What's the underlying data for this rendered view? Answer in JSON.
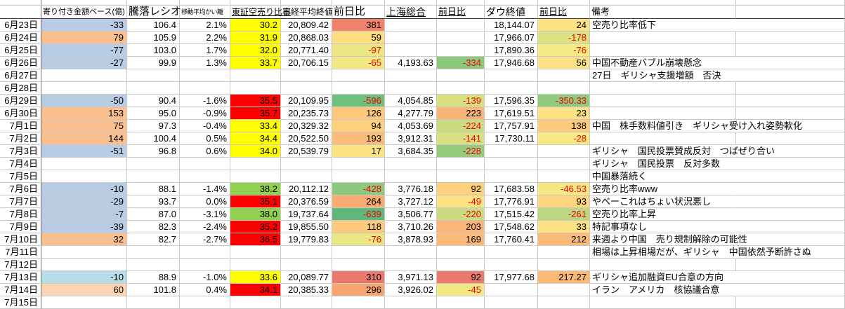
{
  "sheet": {
    "description": "Japanese stock market tracking spreadsheet, June 23 - July 15",
    "palette": {
      "row_negative_blue": "#b8cce4",
      "row_negative_blue_light": "#b7dee8",
      "row_positive_orange": "#fabf8f",
      "row_positive_orange_light": "#fcd5b4",
      "short_ratio_yellow": "#ffff00",
      "short_ratio_red": "#ff0000",
      "short_ratio_green": "#92d050",
      "negative_text_red": "#f00000",
      "gridline": "#c9c9c9"
    }
  },
  "columns": [
    {
      "key": "date",
      "label": ""
    },
    {
      "key": "open_amount",
      "label": "寄り付き金額ベース(億)"
    },
    {
      "key": "ratio",
      "label": "騰落レシオ"
    },
    {
      "key": "ma_deviation",
      "label": "移動平均かい離"
    },
    {
      "key": "short_ratio",
      "label": "東証空売り比率"
    },
    {
      "key": "nikkei",
      "label": "日経平均終値"
    },
    {
      "key": "nikkei_chg",
      "label": "前日比"
    },
    {
      "key": "shanghai",
      "label": "上海総合"
    },
    {
      "key": "shanghai_chg",
      "label": "前日比"
    },
    {
      "key": "dow",
      "label": "ダウ終値"
    },
    {
      "key": "dow_chg",
      "label": "前日比"
    },
    {
      "key": "remark",
      "label": "備考"
    },
    {
      "key": "spacer",
      "label": ""
    }
  ],
  "rows": [
    {
      "date": "6月23日",
      "open_amount": "-33",
      "open_bg": "#b8cce4",
      "ratio": "106.4",
      "ma_deviation": "2.1%",
      "short_ratio": "30.2",
      "short_bg": "#ffff00",
      "nikkei": "20,809.42",
      "nikkei_chg": "381",
      "nikkei_chg_bg": "#f0826c",
      "shanghai": "",
      "shanghai_chg": "",
      "shanghai_chg_bg": "",
      "dow": "18,144.07",
      "dow_chg": "24",
      "dow_chg_bg": "#fce284",
      "remark": "空売り比率低下"
    },
    {
      "date": "6月24日",
      "open_amount": "79",
      "open_bg": "#fabf8f",
      "ratio": "105.9",
      "ma_deviation": "2.2%",
      "short_ratio": "31.9",
      "short_bg": "#ffff00",
      "nikkei": "20,868.03",
      "nikkei_chg": "59",
      "nikkei_chg_bg": "#fedd81",
      "shanghai": "",
      "shanghai_chg": "",
      "shanghai_chg_bg": "",
      "dow": "17,966.07",
      "dow_chg": "-178",
      "dow_chg_bg": "#dce181",
      "remark": ""
    },
    {
      "date": "6月25日",
      "open_amount": "-77",
      "open_bg": "#b8cce4",
      "ratio": "103.0",
      "ma_deviation": "1.7%",
      "short_ratio": "32.0",
      "short_bg": "#ffff00",
      "nikkei": "20,771.40",
      "nikkei_chg": "-97",
      "nikkei_chg_bg": "#e9e683",
      "shanghai": "",
      "shanghai_chg": "",
      "shanghai_chg_bg": "",
      "dow": "17,890.36",
      "dow_chg": "-76",
      "dow_chg_bg": "#f6ea85",
      "remark": ""
    },
    {
      "date": "6月26日",
      "open_amount": "-27",
      "open_bg": "#b8cce4",
      "ratio": "99.9",
      "ma_deviation": "1.3%",
      "short_ratio": "33.7",
      "short_bg": "#ffff00",
      "nikkei": "20,706.15",
      "nikkei_chg": "-65",
      "nikkei_chg_bg": "#f2e884",
      "shanghai": "4,193.63",
      "shanghai_chg": "-334",
      "shanghai_chg_bg": "#8cc97d",
      "dow": "17,946.68",
      "dow_chg": "56",
      "dow_chg_bg": "#fce284",
      "remark": "中国不動産バブル崩壊懸念"
    },
    {
      "date": "6月27日",
      "open_amount": "",
      "open_bg": "",
      "ratio": "",
      "ma_deviation": "",
      "short_ratio": "",
      "short_bg": "",
      "nikkei": "",
      "nikkei_chg": "",
      "nikkei_chg_bg": "",
      "shanghai": "",
      "shanghai_chg": "",
      "shanghai_chg_bg": "",
      "dow": "",
      "dow_chg": "",
      "dow_chg_bg": "",
      "remark": "27日　ギリシャ支援増額　否決"
    },
    {
      "date": "6月28日",
      "open_amount": "",
      "open_bg": "",
      "ratio": "",
      "ma_deviation": "",
      "short_ratio": "",
      "short_bg": "",
      "nikkei": "",
      "nikkei_chg": "",
      "nikkei_chg_bg": "",
      "shanghai": "",
      "shanghai_chg": "",
      "shanghai_chg_bg": "",
      "dow": "",
      "dow_chg": "",
      "dow_chg_bg": "",
      "remark": ""
    },
    {
      "date": "6月29日",
      "open_amount": "-50",
      "open_bg": "#b8cce4",
      "ratio": "90.4",
      "ma_deviation": "-1.6%",
      "short_ratio": "35.5",
      "short_bg": "#ff0000",
      "nikkei": "20,109.95",
      "nikkei_chg": "-596",
      "nikkei_chg_bg": "#6ec07c",
      "shanghai": "4,054.85",
      "shanghai_chg": "-139",
      "shanghai_chg_bg": "#d8e081",
      "dow": "17,596.35",
      "dow_chg": "-350.33",
      "dow_chg_bg": "#8fca7e",
      "remark": ""
    },
    {
      "date": "6月30日",
      "open_amount": "153",
      "open_bg": "#fabf8f",
      "ratio": "95.0",
      "ma_deviation": "-0.9%",
      "short_ratio": "35.7",
      "short_bg": "#ff0000",
      "nikkei": "20,235.73",
      "nikkei_chg": "126",
      "nikkei_chg_bg": "#fdc87c",
      "shanghai": "4,277.79",
      "shanghai_chg": "223",
      "shanghai_chg_bg": "#fab475",
      "dow": "17,619.51",
      "dow_chg": "23",
      "dow_chg_bg": "#fce283",
      "remark": ""
    },
    {
      "date": "7月1日",
      "open_amount": "75",
      "open_bg": "#fabf8f",
      "ratio": "97.3",
      "ma_deviation": "-0.4%",
      "short_ratio": "33.4",
      "short_bg": "#ffff00",
      "nikkei": "20,329.32",
      "nikkei_chg": "94",
      "nikkei_chg_bg": "#fdd07e",
      "shanghai": "4,053.69",
      "shanghai_chg": "-224",
      "shanghai_chg_bg": "#cbdc80",
      "dow": "17,757.91",
      "dow_chg": "138",
      "dow_chg_bg": "#fccb7d",
      "remark": "中国　株手数料値引き　ギリシャ受け入れ姿勢軟化"
    },
    {
      "date": "7月2日",
      "open_amount": "144",
      "open_bg": "#fabf8f",
      "ratio": "100.4",
      "ma_deviation": "0.5%",
      "short_ratio": "34.4",
      "short_bg": "#ffff00",
      "nikkei": "20,522.50",
      "nikkei_chg": "193",
      "nikkei_chg_bg": "#fbbc77",
      "shanghai": "3,912.31",
      "shanghai_chg": "-141",
      "shanghai_chg_bg": "#d8e081",
      "dow": "17,730.11",
      "dow_chg": "-28",
      "dow_chg_bg": "#f6ea85",
      "remark": ""
    },
    {
      "date": "7月3日",
      "open_amount": "-51",
      "open_bg": "#b8cce4",
      "ratio": "96.8",
      "ma_deviation": "0.6%",
      "short_ratio": "34.0",
      "short_bg": "#ffff00",
      "nikkei": "20,539.79",
      "nikkei_chg": "17",
      "nikkei_chg_bg": "#fce483",
      "shanghai": "3,684.35",
      "shanghai_chg": "-228",
      "shanghai_chg_bg": "#97cc7d",
      "dow": "",
      "dow_chg": "",
      "dow_chg_bg": "",
      "remark": "ギリシャ　国民投票賛成反対　つばぜり合い"
    },
    {
      "date": "7月4日",
      "open_amount": "",
      "open_bg": "",
      "ratio": "",
      "ma_deviation": "",
      "short_ratio": "",
      "short_bg": "",
      "nikkei": "",
      "nikkei_chg": "",
      "nikkei_chg_bg": "",
      "shanghai": "",
      "shanghai_chg": "",
      "shanghai_chg_bg": "",
      "dow": "",
      "dow_chg": "",
      "dow_chg_bg": "",
      "remark": "ギリシャ　国民投票　反対多数"
    },
    {
      "date": "7月5日",
      "open_amount": "",
      "open_bg": "",
      "ratio": "",
      "ma_deviation": "",
      "short_ratio": "",
      "short_bg": "",
      "nikkei": "",
      "nikkei_chg": "",
      "nikkei_chg_bg": "",
      "shanghai": "",
      "shanghai_chg": "",
      "shanghai_chg_bg": "",
      "dow": "",
      "dow_chg": "",
      "dow_chg_bg": "",
      "remark": "中国暴落続く"
    },
    {
      "date": "7月6日",
      "open_amount": "-10",
      "open_bg": "#b8cce4",
      "ratio": "88.1",
      "ma_deviation": "-1.4%",
      "short_ratio": "38.2",
      "short_bg": "#92d050",
      "nikkei": "20,112.12",
      "nikkei_chg": "-428",
      "nikkei_chg_bg": "#8cc87d",
      "shanghai": "3,776.18",
      "shanghai_chg": "92",
      "shanghai_chg_bg": "#fdd07e",
      "dow": "17,683.58",
      "dow_chg": "-46.53",
      "dow_chg_bg": "#f3e884",
      "remark": "空売り比率www"
    },
    {
      "date": "7月7日",
      "open_amount": "-29",
      "open_bg": "#b8cce4",
      "ratio": "93.7",
      "ma_deviation": "0.0%",
      "short_ratio": "35.1",
      "short_bg": "#ff0000",
      "nikkei": "20,376.59",
      "nikkei_chg": "264",
      "nikkei_chg_bg": "#f9ab72",
      "shanghai": "3,727.12",
      "shanghai_chg": "-49",
      "shanghai_chg_bg": "#fce283",
      "dow": "17,776.91",
      "dow_chg": "93",
      "dow_chg_bg": "#fdd67f",
      "remark": "やべーこれはちょい状況悪し"
    },
    {
      "date": "7月8日",
      "open_amount": "-7",
      "open_bg": "#b8cce4",
      "ratio": "87.0",
      "ma_deviation": "-3.1%",
      "short_ratio": "38.0",
      "short_bg": "#92d050",
      "nikkei": "19,737.64",
      "nikkei_chg": "-639",
      "nikkei_chg_bg": "#5fb87a",
      "shanghai": "3,506.77",
      "shanghai_chg": "-220",
      "shanghai_chg_bg": "#cbdc80",
      "dow": "17,515.42",
      "dow_chg": "-261",
      "dow_chg_bg": "#bcd77f",
      "remark": "空売り比率上昇"
    },
    {
      "date": "7月9日",
      "open_amount": "-39",
      "open_bg": "#b8cce4",
      "ratio": "82.3",
      "ma_deviation": "-2.4%",
      "short_ratio": "35.2",
      "short_bg": "#ff0000",
      "nikkei": "19,855.50",
      "nikkei_chg": "118",
      "nikkei_chg_bg": "#fdc97d",
      "shanghai": "3,710.26",
      "shanghai_chg": "203",
      "shanghai_chg_bg": "#fbb576",
      "dow": "17,548.62",
      "dow_chg": "33",
      "dow_chg_bg": "#fce284",
      "remark": "特記事項なし"
    },
    {
      "date": "7月10日",
      "open_amount": "32",
      "open_bg": "#fabf8f",
      "ratio": "82.7",
      "ma_deviation": "-2.7%",
      "short_ratio": "36.5",
      "short_bg": "#ff0000",
      "nikkei": "19,779.83",
      "nikkei_chg": "-76",
      "nikkei_chg_bg": "#e9e683",
      "shanghai": "3,878.93",
      "shanghai_chg": "169",
      "shanghai_chg_bg": "#fbba77",
      "dow": "17,760.41",
      "dow_chg": "212",
      "dow_chg_bg": "#fbba77",
      "remark": "来週より中国　売り規制解除の可能性"
    },
    {
      "date": "7月11日",
      "open_amount": "",
      "open_bg": "",
      "ratio": "",
      "ma_deviation": "",
      "short_ratio": "",
      "short_bg": "",
      "nikkei": "",
      "nikkei_chg": "",
      "nikkei_chg_bg": "",
      "shanghai": "",
      "shanghai_chg": "",
      "shanghai_chg_bg": "",
      "dow": "",
      "dow_chg": "",
      "dow_chg_bg": "",
      "remark": "相場は上昇相場だが、ギリシャ　中国依然予断許さぬ"
    },
    {
      "date": "7月12日",
      "open_amount": "",
      "open_bg": "",
      "ratio": "",
      "ma_deviation": "",
      "short_ratio": "",
      "short_bg": "",
      "nikkei": "",
      "nikkei_chg": "",
      "nikkei_chg_bg": "",
      "shanghai": "",
      "shanghai_chg": "",
      "shanghai_chg_bg": "",
      "dow": "",
      "dow_chg": "",
      "dow_chg_bg": "",
      "remark": ""
    },
    {
      "date": "7月13日",
      "open_amount": "-10",
      "open_bg": "#b7dee8",
      "ratio": "88.9",
      "ma_deviation": "-1.0%",
      "short_ratio": "33.6",
      "short_bg": "#ffff00",
      "nikkei": "20,089.77",
      "nikkei_chg": "310",
      "nikkei_chg_bg": "#eb7a6e",
      "shanghai": "3,971.13",
      "shanghai_chg": "92",
      "shanghai_chg_bg": "#eb7a6e",
      "dow": "17,977.68",
      "dow_chg": "217.27",
      "dow_chg_bg": "#fbb877",
      "remark": "ギリシャ追加融資EU合意の方向"
    },
    {
      "date": "7月14日",
      "open_amount": "60",
      "open_bg": "#fcd5b4",
      "ratio": "101.8",
      "ma_deviation": "0.4%",
      "short_ratio": "34.1",
      "short_bg": "#ff0000",
      "nikkei": "20,385.33",
      "nikkei_chg": "296",
      "nikkei_chg_bg": "#f8a671",
      "shanghai": "3,926.02",
      "shanghai_chg": "-45",
      "shanghai_chg_bg": "#f2e884",
      "dow": "",
      "dow_chg": "",
      "dow_chg_bg": "",
      "remark": "イラン　アメリカ　核協議合意"
    },
    {
      "date": "7月15日",
      "open_amount": "",
      "open_bg": "",
      "ratio": "",
      "ma_deviation": "",
      "short_ratio": "",
      "short_bg": "",
      "nikkei": "",
      "nikkei_chg": "",
      "nikkei_chg_bg": "",
      "shanghai": "",
      "shanghai_chg": "",
      "shanghai_chg_bg": "",
      "dow": "",
      "dow_chg": "",
      "dow_chg_bg": "",
      "remark": ""
    }
  ]
}
